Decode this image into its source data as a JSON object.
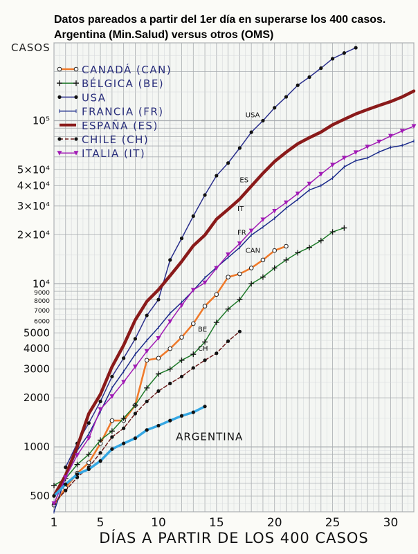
{
  "chart_data": {
    "type": "line",
    "title": "Datos pareados a partir del 1er día en superarse los 400 casos. Argentina (Min.Salud) versus otros (OMS)",
    "xlabel": "DÍAS A PARTIR DE LOS 400 CASOS",
    "ylabel": "CASOS",
    "xlim": [
      1,
      32
    ],
    "ylim": [
      400,
      300000
    ],
    "y_scale": "log",
    "grid": true,
    "legend_position": "top-left",
    "x_ticks": [
      "1",
      "5",
      "10",
      "15",
      "20",
      "25",
      "30"
    ],
    "y_ticks": [
      "500",
      "1000",
      "2000",
      "3000",
      "4000",
      "5000",
      "6000",
      "7000",
      "8000",
      "9000",
      "10⁴",
      "2×10⁴",
      "3×10⁴",
      "4×10⁴",
      "5×10⁴",
      "10⁵"
    ],
    "series": [
      {
        "name": "CANADÁ (CAN)",
        "color": "#f07a2a",
        "marker": "circle-open",
        "x": [
          1,
          2,
          3,
          4,
          5,
          6,
          7,
          8,
          9,
          10,
          11,
          12,
          13,
          14,
          15,
          16,
          17,
          18,
          19,
          20,
          21
        ],
        "y": [
          440,
          560,
          690,
          800,
          1050,
          1450,
          1450,
          1800,
          3400,
          3500,
          4000,
          4700,
          5700,
          7300,
          8600,
          11000,
          11500,
          12500,
          14000,
          16000,
          17000
        ]
      },
      {
        "name": "BÉLGICA (BE)",
        "color": "#1f7a2a",
        "marker": "plus",
        "x": [
          1,
          2,
          3,
          4,
          5,
          6,
          7,
          8,
          9,
          10,
          11,
          12,
          13,
          14,
          15,
          16,
          17,
          18,
          19,
          20,
          21,
          22,
          23,
          24,
          25,
          26
        ],
        "y": [
          580,
          640,
          780,
          900,
          1100,
          1250,
          1500,
          1800,
          2300,
          2800,
          3000,
          3400,
          3700,
          4400,
          5800,
          7000,
          8000,
          10000,
          11000,
          12500,
          14000,
          15500,
          16700,
          18400,
          20800,
          22000
        ]
      },
      {
        "name": "USA",
        "color": "#2a2f8c",
        "marker": "dot",
        "x": [
          2,
          3,
          4,
          5,
          6,
          7,
          8,
          9,
          10,
          11,
          12,
          13,
          14,
          15,
          16,
          17,
          18,
          19,
          20,
          21,
          22,
          23,
          24,
          25,
          26,
          27
        ],
        "y": [
          750,
          1050,
          1400,
          1900,
          2700,
          3500,
          4600,
          6400,
          8000,
          14000,
          19000,
          26000,
          35000,
          46000,
          55000,
          68000,
          85000,
          100000,
          120000,
          140000,
          165000,
          185000,
          210000,
          240000,
          260000,
          280000
        ]
      },
      {
        "name": "FRANCIA (FR)",
        "color": "#1a2a8a",
        "marker": "tick",
        "x": [
          1,
          2,
          3,
          4,
          5,
          6,
          7,
          8,
          9,
          10,
          11,
          12,
          13,
          14,
          15,
          16,
          17,
          18,
          19,
          20,
          21,
          22,
          23,
          24,
          25,
          26,
          27,
          28,
          29,
          30,
          31,
          32
        ],
        "y": [
          400,
          650,
          950,
          1200,
          1650,
          2300,
          2900,
          3700,
          4500,
          5400,
          6600,
          7700,
          9100,
          10900,
          12600,
          14500,
          16700,
          19900,
          22300,
          25200,
          29100,
          32900,
          37600,
          40000,
          44500,
          52100,
          56900,
          59100,
          64300,
          68600,
          70500,
          75000
        ]
      },
      {
        "name": "ESPAÑA (ES)",
        "color": "#8a1a1a",
        "marker": "none",
        "x": [
          1,
          2,
          3,
          4,
          5,
          6,
          7,
          8,
          9,
          10,
          11,
          12,
          13,
          14,
          15,
          16,
          17,
          18,
          19,
          20,
          21,
          22,
          23,
          24,
          25,
          26,
          27,
          28,
          29,
          30,
          31,
          32
        ],
        "y": [
          500,
          670,
          1000,
          1600,
          2100,
          3100,
          4200,
          6000,
          7800,
          9200,
          11200,
          13700,
          17100,
          19900,
          24900,
          28600,
          33100,
          39700,
          47600,
          56200,
          64100,
          72200,
          78700,
          85200,
          94400,
          102000,
          110000,
          117000,
          124000,
          131000,
          140000,
          152000
        ]
      },
      {
        "name": "CHILE (CH)",
        "color": "#6a1a1a",
        "marker": "dot",
        "x": [
          1,
          2,
          3,
          4,
          5,
          6,
          7,
          8,
          9,
          10,
          11,
          12,
          13,
          14,
          15,
          16,
          17
        ],
        "y": [
          450,
          540,
          650,
          750,
          920,
          1150,
          1300,
          1600,
          1900,
          2200,
          2450,
          2700,
          3050,
          3400,
          3750,
          4450,
          5100
        ]
      },
      {
        "name": "ITALIA (IT)",
        "color": "#a01ab4",
        "marker": "triangle",
        "x": [
          1,
          2,
          3,
          4,
          5,
          6,
          7,
          8,
          9,
          10,
          11,
          12,
          13,
          14,
          15,
          16,
          17,
          18,
          19,
          20,
          21,
          22,
          23,
          24,
          25,
          26,
          27,
          28,
          29,
          30,
          31,
          32
        ],
        "y": [
          450,
          650,
          890,
          1130,
          1700,
          2040,
          2500,
          3100,
          3860,
          4640,
          5880,
          7380,
          9170,
          10150,
          12460,
          15110,
          17660,
          21150,
          24750,
          27980,
          31500,
          35710,
          41030,
          47020,
          53580,
          59140,
          63930,
          69180,
          74390,
          80540,
          86500,
          92470
        ]
      },
      {
        "name": "ARGENTINA",
        "color": "#35a7e3",
        "marker": "dot",
        "x": [
          1,
          2,
          3,
          4,
          5,
          6,
          7,
          8,
          9,
          10,
          11,
          12,
          13,
          14
        ],
        "y": [
          500,
          590,
          680,
          730,
          820,
          970,
          1050,
          1130,
          1270,
          1350,
          1450,
          1550,
          1630,
          1770
        ]
      }
    ],
    "annotations": [
      {
        "text": "USA",
        "x": 17.5,
        "y": 105000
      },
      {
        "text": "ES",
        "x": 17.0,
        "y": 42000
      },
      {
        "text": "IT",
        "x": 16.8,
        "y": 28000
      },
      {
        "text": "FR",
        "x": 16.8,
        "y": 20000
      },
      {
        "text": "CAN",
        "x": 17.5,
        "y": 15500
      },
      {
        "text": "BE",
        "x": 13.4,
        "y": 5100
      },
      {
        "text": "CH",
        "x": 13.4,
        "y": 3900
      },
      {
        "text": "ARGENTINA",
        "x": 11.5,
        "y": 1100
      }
    ]
  }
}
